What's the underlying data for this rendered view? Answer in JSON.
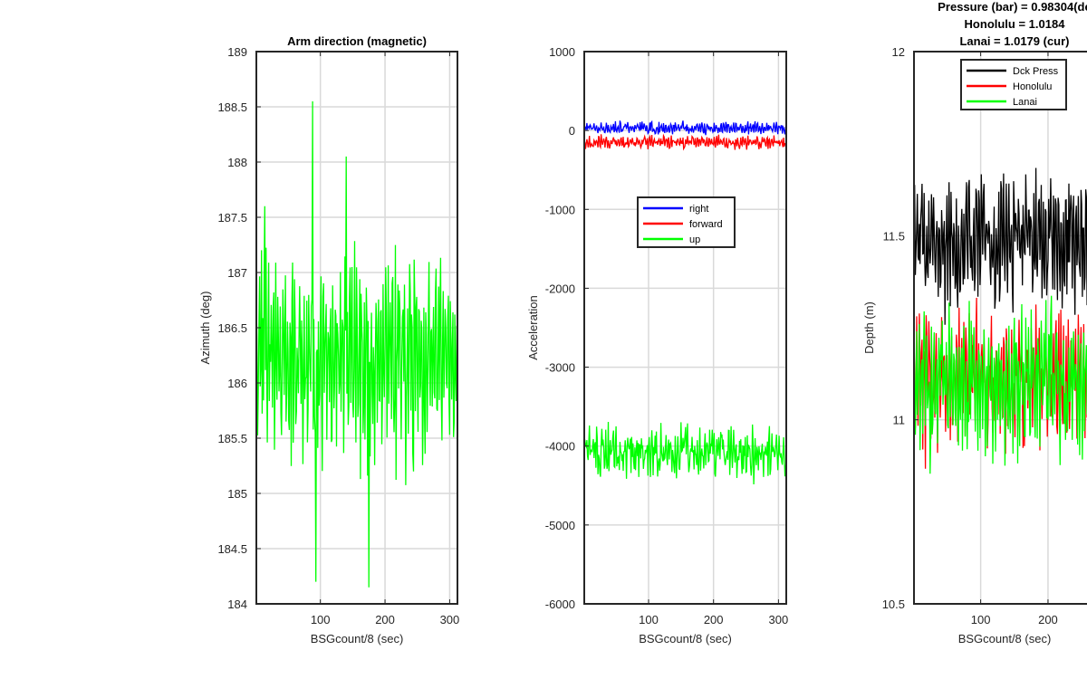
{
  "chart_data": [
    {
      "type": "line",
      "title": "Arm direction (magnetic)",
      "xlabel": "BSGcount/8 (sec)",
      "ylabel": "Azimuth (deg)",
      "xlim": [
        1,
        312
      ],
      "ylim": [
        184,
        189
      ],
      "xticks": [
        100,
        200,
        300
      ],
      "yticks": [
        184,
        184.5,
        185,
        185.5,
        186,
        186.5,
        187,
        187.5,
        188,
        188.5,
        189
      ],
      "grid": true,
      "series": [
        {
          "color": "#00ff00",
          "center": 186.2,
          "amplitude": 0.85,
          "noise": 0.35,
          "n": 312,
          "spikes": [
            [
              88,
              188.55
            ],
            [
              14,
              187.6
            ],
            [
              175,
              184.15
            ],
            [
              93,
              184.2
            ],
            [
              140,
              188.05
            ]
          ]
        }
      ]
    },
    {
      "type": "line",
      "xlabel": "BSGcount/8 (sec)",
      "ylabel": "Acceleration",
      "xlim": [
        1,
        312
      ],
      "ylim": [
        -6000,
        1000
      ],
      "xticks": [
        100,
        200,
        300
      ],
      "yticks": [
        -6000,
        -5000,
        -4000,
        -3000,
        -2000,
        -1000,
        0,
        1000
      ],
      "grid": true,
      "legend": {
        "position": "center-right",
        "entries": [
          "right",
          "forward",
          "up"
        ]
      },
      "series": [
        {
          "name": "right",
          "color": "#0000ff",
          "center": 30,
          "amplitude": 60,
          "noise": 45,
          "n": 312
        },
        {
          "name": "forward",
          "color": "#ff0000",
          "center": -150,
          "amplitude": 60,
          "noise": 45,
          "n": 312
        },
        {
          "name": "up",
          "color": "#00ff00",
          "center": -4080,
          "amplitude": 200,
          "noise": 230,
          "n": 312
        }
      ]
    },
    {
      "type": "line",
      "title_lines": [
        "Pressure (bar) = 0.98304(de",
        "Honolulu = 1.0184",
        "Lanai = 1.0179 (cur)"
      ],
      "xlabel": "BSGcount/8 (sec)",
      "ylabel": "Depth (m)",
      "xlim": [
        1,
        270
      ],
      "ylim": [
        10.5,
        12
      ],
      "xticks": [
        100,
        200
      ],
      "yticks": [
        10.5,
        11,
        11.5,
        12
      ],
      "grid": true,
      "legend": {
        "position": "top",
        "entries": [
          "Dck Press",
          "Honolulu",
          "Lanai"
        ]
      },
      "series": [
        {
          "name": "Dck Press",
          "color": "#000000",
          "center": 11.48,
          "amplitude": 0.15,
          "noise": 0.08,
          "n": 270
        },
        {
          "name": "Honolulu",
          "color": "#ff0000",
          "center": 11.1,
          "amplitude": 0.16,
          "noise": 0.1,
          "n": 270
        },
        {
          "name": "Lanai",
          "color": "#00ff00",
          "center": 11.1,
          "amplitude": 0.16,
          "noise": 0.1,
          "n": 270
        }
      ]
    }
  ]
}
